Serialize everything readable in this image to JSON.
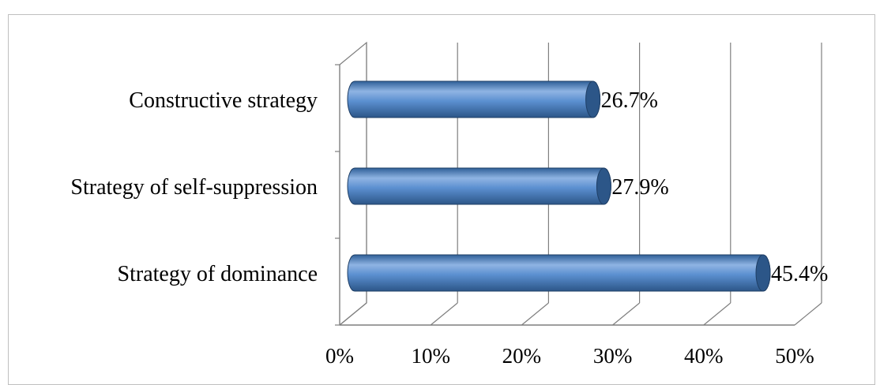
{
  "chart_data": {
    "type": "bar",
    "orientation": "horizontal",
    "style": "3d-cylinder",
    "categories": [
      "Constructive strategy",
      "Strategy of self-suppression",
      "Strategy of dominance"
    ],
    "values": [
      26.7,
      27.9,
      45.4
    ],
    "data_labels": [
      "26.7%",
      "27.9%",
      "45.4%"
    ],
    "x_ticks": [
      "0%",
      "10%",
      "20%",
      "30%",
      "40%",
      "50%"
    ],
    "xlim": [
      0,
      50
    ],
    "grid": true,
    "legend": false,
    "title": "",
    "xlabel": "",
    "ylabel": "",
    "colors": {
      "bar": "#4f81bd",
      "bar_light": "#8fb4e3",
      "bar_dark": "#2c5688",
      "grid": "#7f7f7f"
    }
  }
}
